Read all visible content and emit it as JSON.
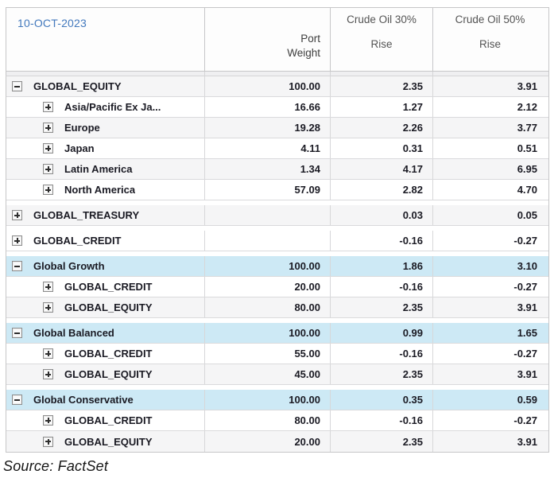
{
  "header": {
    "date": "10-OCT-2023",
    "port_weight_label": "Port\nWeight",
    "scenario1": {
      "line1": "Crude Oil 30%",
      "line2": "Rise"
    },
    "scenario2": {
      "line1": "Crude Oil 50%",
      "line2": "Rise"
    }
  },
  "colors": {
    "date_text": "#4379bd",
    "highlight_row": "#cde9f5",
    "alt_row": "#f5f5f6",
    "grid_border": "#c6c6c8"
  },
  "rows": [
    {
      "label": "GLOBAL_EQUITY",
      "level": 0,
      "expander": "minus",
      "weight": "100.00",
      "s1": "2.35",
      "s2": "3.91",
      "bg": "gray",
      "gap_before": false
    },
    {
      "label": "Asia/Pacific Ex Ja...",
      "level": 1,
      "expander": "plus",
      "weight": "16.66",
      "s1": "1.27",
      "s2": "2.12",
      "bg": "white",
      "gap_before": false
    },
    {
      "label": "Europe",
      "level": 1,
      "expander": "plus",
      "weight": "19.28",
      "s1": "2.26",
      "s2": "3.77",
      "bg": "gray",
      "gap_before": false
    },
    {
      "label": "Japan",
      "level": 1,
      "expander": "plus",
      "weight": "4.11",
      "s1": "0.31",
      "s2": "0.51",
      "bg": "white",
      "gap_before": false
    },
    {
      "label": "Latin America",
      "level": 1,
      "expander": "plus",
      "weight": "1.34",
      "s1": "4.17",
      "s2": "6.95",
      "bg": "gray",
      "gap_before": false
    },
    {
      "label": "North America",
      "level": 1,
      "expander": "plus",
      "weight": "57.09",
      "s1": "2.82",
      "s2": "4.70",
      "bg": "white",
      "gap_before": false
    },
    {
      "label": "GLOBAL_TREASURY",
      "level": 0,
      "expander": "plus",
      "weight": "",
      "s1": "0.03",
      "s2": "0.05",
      "bg": "gray",
      "gap_before": true
    },
    {
      "label": "GLOBAL_CREDIT",
      "level": 0,
      "expander": "plus",
      "weight": "",
      "s1": "-0.16",
      "s2": "-0.27",
      "bg": "white",
      "gap_before": true
    },
    {
      "label": "Global Growth",
      "level": 0,
      "expander": "minus",
      "weight": "100.00",
      "s1": "1.86",
      "s2": "3.10",
      "bg": "blue",
      "gap_before": true
    },
    {
      "label": "GLOBAL_CREDIT",
      "level": 1,
      "expander": "plus",
      "weight": "20.00",
      "s1": "-0.16",
      "s2": "-0.27",
      "bg": "white",
      "gap_before": false
    },
    {
      "label": "GLOBAL_EQUITY",
      "level": 1,
      "expander": "plus",
      "weight": "80.00",
      "s1": "2.35",
      "s2": "3.91",
      "bg": "gray",
      "gap_before": false
    },
    {
      "label": "Global Balanced",
      "level": 0,
      "expander": "minus",
      "weight": "100.00",
      "s1": "0.99",
      "s2": "1.65",
      "bg": "blue",
      "gap_before": true
    },
    {
      "label": "GLOBAL_CREDIT",
      "level": 1,
      "expander": "plus",
      "weight": "55.00",
      "s1": "-0.16",
      "s2": "-0.27",
      "bg": "white",
      "gap_before": false
    },
    {
      "label": "GLOBAL_EQUITY",
      "level": 1,
      "expander": "plus",
      "weight": "45.00",
      "s1": "2.35",
      "s2": "3.91",
      "bg": "gray",
      "gap_before": false
    },
    {
      "label": "Global Conservative",
      "level": 0,
      "expander": "minus",
      "weight": "100.00",
      "s1": "0.35",
      "s2": "0.59",
      "bg": "blue",
      "gap_before": true
    },
    {
      "label": "GLOBAL_CREDIT",
      "level": 1,
      "expander": "plus",
      "weight": "80.00",
      "s1": "-0.16",
      "s2": "-0.27",
      "bg": "white",
      "gap_before": false
    },
    {
      "label": "GLOBAL_EQUITY",
      "level": 1,
      "expander": "plus",
      "weight": "20.00",
      "s1": "2.35",
      "s2": "3.91",
      "bg": "gray",
      "gap_before": false
    }
  ],
  "footer": {
    "source": "Source: FactSet"
  }
}
